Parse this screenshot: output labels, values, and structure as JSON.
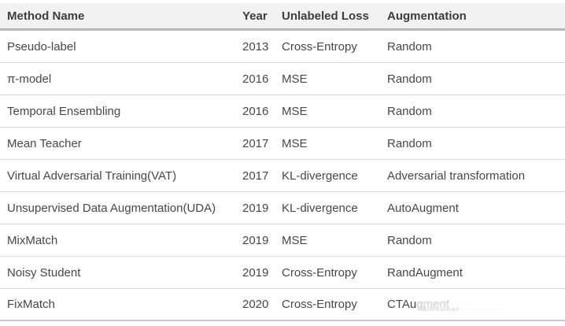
{
  "colors": {
    "page_bg": "#ffffff",
    "header_bg": "#f1f1f2",
    "header_text": "#3d3d3f",
    "body_text": "#474747",
    "header_border": "#b7b7b9",
    "row_border": "#d9d9d9",
    "bottom_border": "#c9c9c9"
  },
  "table": {
    "columns": [
      {
        "key": "method",
        "label": "Method Name"
      },
      {
        "key": "year",
        "label": "Year"
      },
      {
        "key": "loss",
        "label": "Unlabeled Loss"
      },
      {
        "key": "aug",
        "label": "Augmentation"
      }
    ],
    "rows": [
      {
        "method": "Pseudo-label",
        "year": "2013",
        "loss": "Cross-Entropy",
        "aug": "Random"
      },
      {
        "method": "π-model",
        "year": "2016",
        "loss": "MSE",
        "aug": "Random"
      },
      {
        "method": "Temporal Ensembling",
        "year": "2016",
        "loss": "MSE",
        "aug": "Random"
      },
      {
        "method": "Mean Teacher",
        "year": "2017",
        "loss": "MSE",
        "aug": "Random"
      },
      {
        "method": "Virtual Adversarial Training(VAT)",
        "year": "2017",
        "loss": "KL-divergence",
        "aug": "Adversarial transformation"
      },
      {
        "method": "Unsupervised Data Augmentation(UDA)",
        "year": "2019",
        "loss": "KL-divergence",
        "aug": "AutoAugment"
      },
      {
        "method": "MixMatch",
        "year": "2019",
        "loss": "MSE",
        "aug": "Random"
      },
      {
        "method": "Noisy Student",
        "year": "2019",
        "loss": "Cross-Entropy",
        "aug": "RandAugment"
      },
      {
        "method": "FixMatch",
        "year": "2020",
        "loss": "Cross-Entropy",
        "aug": "CTAugment",
        "aug_watermarked": true
      }
    ]
  },
  "watermark": {
    "clear_fragment": "CTAu",
    "obscured_fragment": "gment",
    "smudge_text": "Ailtsenat:"
  },
  "chart_data": {
    "type": "table",
    "title": "",
    "columns": [
      "Method Name",
      "Year",
      "Unlabeled Loss",
      "Augmentation"
    ],
    "rows": [
      [
        "Pseudo-label",
        2013,
        "Cross-Entropy",
        "Random"
      ],
      [
        "π-model",
        2016,
        "MSE",
        "Random"
      ],
      [
        "Temporal Ensembling",
        2016,
        "MSE",
        "Random"
      ],
      [
        "Mean Teacher",
        2017,
        "MSE",
        "Random"
      ],
      [
        "Virtual Adversarial Training(VAT)",
        2017,
        "KL-divergence",
        "Adversarial transformation"
      ],
      [
        "Unsupervised Data Augmentation(UDA)",
        2019,
        "KL-divergence",
        "AutoAugment"
      ],
      [
        "MixMatch",
        2019,
        "MSE",
        "Random"
      ],
      [
        "Noisy Student",
        2019,
        "Cross-Entropy",
        "RandAugment"
      ],
      [
        "FixMatch",
        2020,
        "Cross-Entropy",
        "CTAugment (partially obscured by watermark)"
      ]
    ]
  }
}
